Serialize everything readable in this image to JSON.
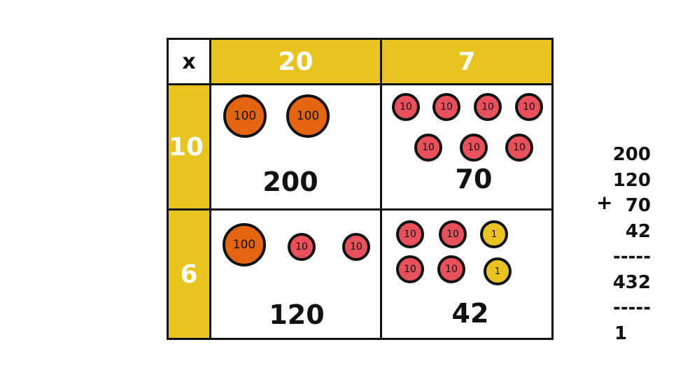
{
  "table": {
    "operator": "x",
    "columns": [
      "20",
      "7"
    ],
    "rows": [
      "10",
      "6"
    ],
    "cells": [
      {
        "row": "10",
        "col": "20",
        "coins": [
          100,
          100
        ],
        "total": "200"
      },
      {
        "row": "10",
        "col": "7",
        "coins": [
          10,
          10,
          10,
          10,
          10,
          10,
          10
        ],
        "total": "70"
      },
      {
        "row": "6",
        "col": "20",
        "coins": [
          100,
          10,
          10
        ],
        "total": "120"
      },
      {
        "row": "6",
        "col": "7",
        "coins": [
          10,
          10,
          1,
          10,
          10,
          1
        ],
        "total": "42"
      }
    ]
  },
  "sum": {
    "operator": "+",
    "lines": [
      "200",
      "120",
      "70",
      "42",
      "-----",
      "432",
      "-----",
      "1"
    ]
  },
  "colors": {
    "header": "#E8C321",
    "coin_100": "#E5640F",
    "coin_10": "#E8505B",
    "coin_1": "#E8C321"
  }
}
